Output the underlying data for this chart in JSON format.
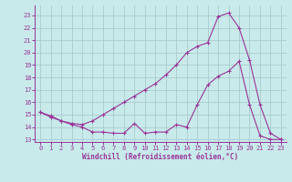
{
  "xlabel": "Windchill (Refroidissement éolien,°C)",
  "bg_color": "#c8eaea",
  "line_color": "#993399",
  "grid_color": "#aacccc",
  "xlim": [
    -0.5,
    23.5
  ],
  "ylim": [
    12.8,
    23.8
  ],
  "xticks": [
    0,
    1,
    2,
    3,
    4,
    5,
    6,
    7,
    8,
    9,
    10,
    11,
    12,
    13,
    14,
    15,
    16,
    17,
    18,
    19,
    20,
    21,
    22,
    23
  ],
  "yticks": [
    13,
    14,
    15,
    16,
    17,
    18,
    19,
    20,
    21,
    22,
    23
  ],
  "line1_x": [
    0,
    1,
    2,
    3,
    4,
    5,
    6,
    7,
    8,
    9,
    10,
    11,
    12,
    13,
    14,
    15,
    16,
    17,
    18,
    19,
    20,
    21,
    22,
    23
  ],
  "line1_y": [
    15.2,
    14.8,
    14.5,
    14.2,
    14.0,
    13.6,
    13.6,
    13.5,
    13.5,
    14.3,
    13.5,
    13.6,
    13.6,
    14.2,
    14.0,
    15.8,
    17.4,
    18.1,
    18.5,
    19.3,
    15.8,
    13.3,
    13.0,
    13.0
  ],
  "line2_x": [
    0,
    1,
    2,
    3,
    4,
    5,
    6,
    7,
    8,
    9,
    10,
    11,
    12,
    13,
    14,
    15,
    16,
    17,
    18,
    19,
    20,
    21,
    22,
    23
  ],
  "line2_y": [
    15.2,
    14.9,
    14.5,
    14.3,
    14.2,
    14.5,
    15.0,
    15.5,
    16.0,
    16.5,
    17.0,
    17.5,
    18.2,
    19.0,
    20.0,
    20.5,
    20.8,
    22.9,
    23.2,
    22.0,
    19.4,
    15.8,
    13.5,
    13.0
  ]
}
